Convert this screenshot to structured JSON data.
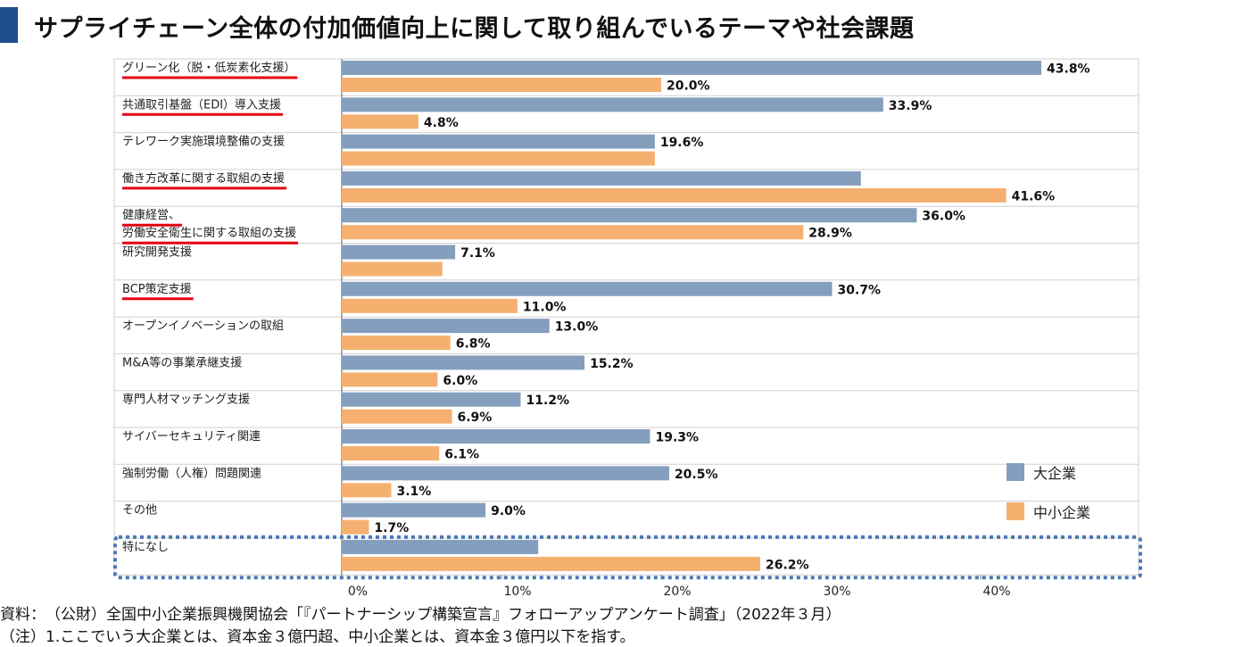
{
  "page": {
    "title": "サプライチェーン全体の付加価値向上に関して取り組んでいるテーマや社会課題",
    "source": "資料：　（公財）全国中小企業振興機関協会「『パートナーシップ構築宣言』フォローアップアンケート調査」（2022年３月）",
    "note": "（注）1.ここでいう大企業とは、資本金３億円超、中小企業とは、資本金３億円以下を指す。"
  },
  "colors": {
    "large": "#849fbe",
    "sme": "#f5b070",
    "underline": "#e60012",
    "highlight_box": "#4a7ab8",
    "title_bar": "#1f4e8c"
  },
  "chart_data": {
    "type": "bar",
    "orientation": "horizontal",
    "xlim": [
      0,
      50
    ],
    "xticks": [
      "0%",
      "10%",
      "20%",
      "30%",
      "40%"
    ],
    "legend": {
      "position": "bottom-right",
      "entries": [
        "大企業",
        "中小企業"
      ]
    },
    "categories": [
      {
        "lines": [
          "グリーン化（脱・低炭素化支援）"
        ],
        "underline": true
      },
      {
        "lines": [
          "共通取引基盤（EDI）導入支援"
        ],
        "underline": true
      },
      {
        "lines": [
          "テレワーク実施環境整備の支援"
        ],
        "underline": false
      },
      {
        "lines": [
          "働き方改革に関する取組の支援"
        ],
        "underline": true
      },
      {
        "lines": [
          "健康経営、",
          "労働安全衛生に関する取組の支援"
        ],
        "underline": true
      },
      {
        "lines": [
          "研究開発支援"
        ],
        "underline": false
      },
      {
        "lines": [
          "BCP策定支援"
        ],
        "underline": true
      },
      {
        "lines": [
          "オープンイノベーションの取組"
        ],
        "underline": false
      },
      {
        "lines": [
          "M&A等の事業承継支援"
        ],
        "underline": false
      },
      {
        "lines": [
          "専門人材マッチング支援"
        ],
        "underline": false
      },
      {
        "lines": [
          "サイバーセキュリティ関連"
        ],
        "underline": false
      },
      {
        "lines": [
          "強制労働（人権）問題関連"
        ],
        "underline": false
      },
      {
        "lines": [
          "その他"
        ],
        "underline": false
      },
      {
        "lines": [
          "特になし"
        ],
        "underline": false,
        "highlighted": true
      }
    ],
    "series": [
      {
        "name": "大企業",
        "values": [
          43.8,
          33.9,
          19.6,
          32.5,
          36.0,
          7.1,
          30.7,
          13.0,
          15.2,
          11.2,
          19.3,
          20.5,
          9.0,
          12.3
        ],
        "labels": [
          "43.8%",
          "33.9%",
          "19.6%",
          "",
          "36.0%",
          "7.1%",
          "30.7%",
          "13.0%",
          "15.2%",
          "11.2%",
          "19.3%",
          "20.5%",
          "9.0%",
          ""
        ]
      },
      {
        "name": "中小企業",
        "values": [
          20.0,
          4.8,
          19.6,
          41.6,
          28.9,
          6.3,
          11.0,
          6.8,
          6.0,
          6.9,
          6.1,
          3.1,
          1.7,
          26.2
        ],
        "labels": [
          "20.0%",
          "4.8%",
          "",
          "41.6%",
          "28.9%",
          "",
          "11.0%",
          "6.8%",
          "6.0%",
          "6.9%",
          "6.1%",
          "3.1%",
          "1.7%",
          "26.2%"
        ]
      }
    ]
  }
}
